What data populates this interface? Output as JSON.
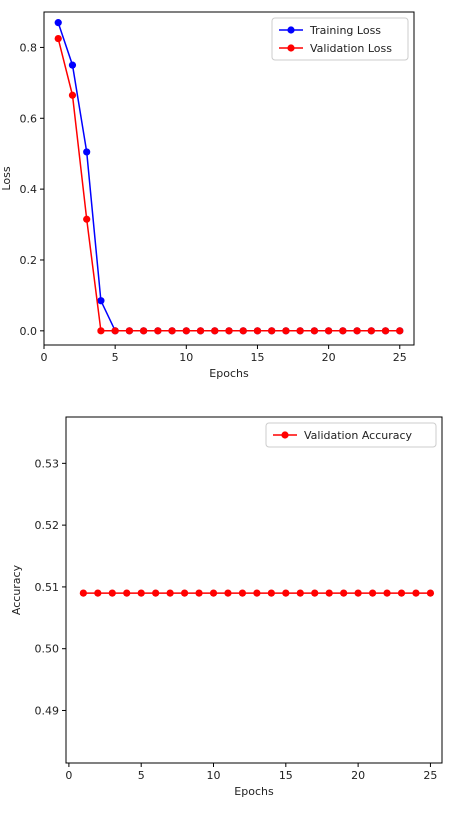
{
  "chart_data": [
    {
      "type": "line",
      "xlabel": "Epochs",
      "ylabel": "Loss",
      "xlim": [
        0,
        26
      ],
      "ylim": [
        -0.04,
        0.9
      ],
      "xticks": [
        0,
        5,
        10,
        15,
        20,
        25
      ],
      "yticks": [
        0.0,
        0.2,
        0.4,
        0.6,
        0.8
      ],
      "ytick_labels": [
        "0.0",
        "0.2",
        "0.4",
        "0.6",
        "0.8"
      ],
      "legend_position": "upper-right",
      "grid": false,
      "series": [
        {
          "name": "Training Loss",
          "color": "#0000ff",
          "x": [
            1,
            2,
            3,
            4,
            5,
            6,
            7,
            8,
            9,
            10,
            11,
            12,
            13,
            14,
            15,
            16,
            17,
            18,
            19,
            20,
            21,
            22,
            23,
            24,
            25
          ],
          "values": [
            0.87,
            0.75,
            0.505,
            0.085,
            0,
            0,
            0,
            0,
            0,
            0,
            0,
            0,
            0,
            0,
            0,
            0,
            0,
            0,
            0,
            0,
            0,
            0,
            0,
            0,
            0
          ]
        },
        {
          "name": "Validation Loss",
          "color": "#ff0000",
          "x": [
            1,
            2,
            3,
            4,
            5,
            6,
            7,
            8,
            9,
            10,
            11,
            12,
            13,
            14,
            15,
            16,
            17,
            18,
            19,
            20,
            21,
            22,
            23,
            24,
            25
          ],
          "values": [
            0.825,
            0.665,
            0.315,
            0,
            0,
            0,
            0,
            0,
            0,
            0,
            0,
            0,
            0,
            0,
            0,
            0,
            0,
            0,
            0,
            0,
            0,
            0,
            0,
            0,
            0
          ]
        }
      ]
    },
    {
      "type": "line",
      "xlabel": "Epochs",
      "ylabel": "Accuracy",
      "xlim": [
        -0.2,
        25.8
      ],
      "ylim": [
        0.4815,
        0.5375
      ],
      "xticks": [
        0,
        5,
        10,
        15,
        20,
        25
      ],
      "yticks": [
        0.49,
        0.5,
        0.51,
        0.52,
        0.53
      ],
      "ytick_labels": [
        "0.49",
        "0.50",
        "0.51",
        "0.52",
        "0.53"
      ],
      "legend_position": "upper-right",
      "grid": false,
      "series": [
        {
          "name": "Validation Accuracy",
          "color": "#ff0000",
          "x": [
            1,
            2,
            3,
            4,
            5,
            6,
            7,
            8,
            9,
            10,
            11,
            12,
            13,
            14,
            15,
            16,
            17,
            18,
            19,
            20,
            21,
            22,
            23,
            24,
            25
          ],
          "values": [
            0.509,
            0.509,
            0.509,
            0.509,
            0.509,
            0.509,
            0.509,
            0.509,
            0.509,
            0.509,
            0.509,
            0.509,
            0.509,
            0.509,
            0.509,
            0.509,
            0.509,
            0.509,
            0.509,
            0.509,
            0.509,
            0.509,
            0.509,
            0.509,
            0.509
          ]
        }
      ]
    }
  ]
}
